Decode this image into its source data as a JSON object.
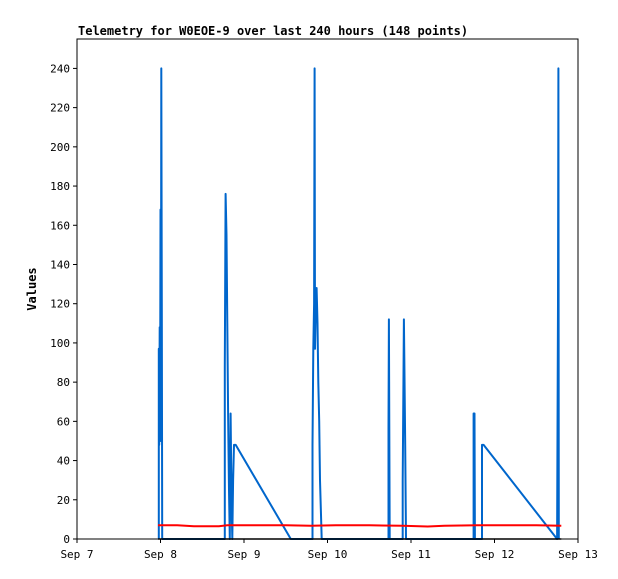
{
  "chart_data": {
    "type": "line",
    "title": "Telemetry for W0EOE-9 over last 240 hours (148 points)",
    "xlabel": "",
    "ylabel": "Values",
    "x_ticks": [
      "Sep 7",
      "Sep 8",
      "Sep 9",
      "Sep 10",
      "Sep 11",
      "Sep 12",
      "Sep 13"
    ],
    "y_ticks": [
      0,
      20,
      40,
      60,
      80,
      100,
      120,
      140,
      160,
      180,
      200,
      220,
      240
    ],
    "xlim_days": [
      7,
      13
    ],
    "ylim": [
      0,
      255
    ],
    "grid": false,
    "legend": "none",
    "series": [
      {
        "color": "#0066cc",
        "points": [
          [
            7.98,
            0
          ],
          [
            7.98,
            97
          ],
          [
            7.985,
            48
          ],
          [
            7.99,
            108
          ],
          [
            7.995,
            60
          ],
          [
            8.0,
            168
          ],
          [
            8.005,
            50
          ],
          [
            8.01,
            240
          ],
          [
            8.015,
            120
          ],
          [
            8.02,
            0
          ],
          [
            8.77,
            0
          ],
          [
            8.77,
            88
          ],
          [
            8.78,
            176
          ],
          [
            8.79,
            155
          ],
          [
            8.8,
            110
          ],
          [
            8.81,
            64
          ],
          [
            8.82,
            25
          ],
          [
            8.83,
            0
          ],
          [
            8.84,
            64
          ],
          [
            8.85,
            20
          ],
          [
            8.86,
            0
          ],
          [
            8.87,
            30
          ],
          [
            8.88,
            48
          ],
          [
            8.9,
            48
          ],
          [
            9.56,
            0
          ],
          [
            9.82,
            0
          ],
          [
            9.82,
            48
          ],
          [
            9.83,
            97
          ],
          [
            9.84,
            120
          ],
          [
            9.845,
            240
          ],
          [
            9.85,
            97
          ],
          [
            9.86,
            120
          ],
          [
            9.87,
            128
          ],
          [
            9.88,
            110
          ],
          [
            9.89,
            80
          ],
          [
            9.9,
            60
          ],
          [
            9.91,
            30
          ],
          [
            9.93,
            0
          ],
          [
            10.73,
            0
          ],
          [
            10.73,
            56
          ],
          [
            10.735,
            112
          ],
          [
            10.74,
            56
          ],
          [
            10.745,
            0
          ],
          [
            10.9,
            0
          ],
          [
            10.9,
            30
          ],
          [
            10.91,
            84
          ],
          [
            10.915,
            112
          ],
          [
            10.92,
            93
          ],
          [
            10.93,
            48
          ],
          [
            10.94,
            0
          ],
          [
            11.75,
            0
          ],
          [
            11.75,
            64
          ],
          [
            11.76,
            64
          ],
          [
            11.765,
            0
          ],
          [
            11.85,
            0
          ],
          [
            11.85,
            48
          ],
          [
            11.87,
            48
          ],
          [
            12.75,
            0
          ],
          [
            12.76,
            120
          ],
          [
            12.765,
            240
          ],
          [
            12.77,
            0
          ]
        ]
      },
      {
        "color": "#ff0000",
        "points": [
          [
            7.97,
            7
          ],
          [
            8.2,
            7
          ],
          [
            8.4,
            6.5
          ],
          [
            8.7,
            6.5
          ],
          [
            8.8,
            7
          ],
          [
            9.2,
            7
          ],
          [
            9.5,
            7
          ],
          [
            9.8,
            6.8
          ],
          [
            10.1,
            7
          ],
          [
            10.5,
            7
          ],
          [
            10.9,
            6.8
          ],
          [
            11.2,
            6.4
          ],
          [
            11.4,
            6.8
          ],
          [
            11.8,
            7
          ],
          [
            12.2,
            7
          ],
          [
            12.5,
            7
          ],
          [
            12.8,
            6.8
          ]
        ]
      },
      {
        "color": "#000000",
        "points": [
          [
            7.97,
            0
          ],
          [
            12.8,
            0
          ]
        ]
      }
    ]
  }
}
